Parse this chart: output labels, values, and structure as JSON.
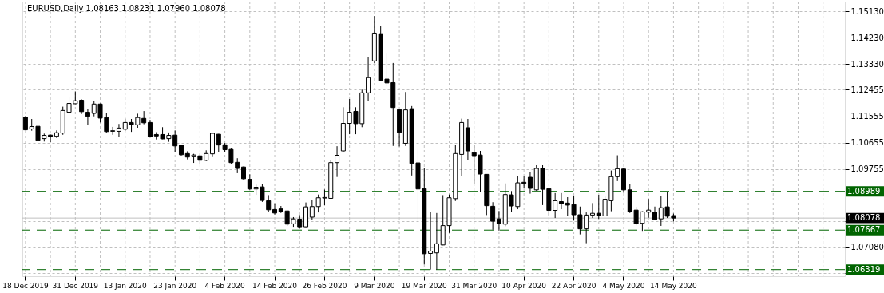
{
  "chart_data": {
    "type": "candlestick",
    "title": "EURUSD,Daily  1.08163 1.08231 1.07960 1.08078",
    "categories": [
      "18 Dec 2019",
      null,
      null,
      null,
      null,
      null,
      null,
      null,
      "31 Dec 2019",
      null,
      null,
      null,
      null,
      null,
      null,
      null,
      "13 Jan 2020",
      null,
      null,
      null,
      null,
      null,
      null,
      null,
      "23 Jan 2020",
      null,
      null,
      null,
      null,
      null,
      null,
      null,
      "4 Feb 2020",
      null,
      null,
      null,
      null,
      null,
      null,
      null,
      "14 Feb 2020",
      null,
      null,
      null,
      null,
      null,
      null,
      null,
      "26 Feb 2020",
      null,
      null,
      null,
      null,
      null,
      null,
      null,
      "9 Mar 2020",
      null,
      null,
      null,
      null,
      null,
      null,
      null,
      "19 Mar 2020",
      null,
      null,
      null,
      null,
      null,
      null,
      null,
      "31 Mar 2020",
      null,
      null,
      null,
      null,
      null,
      null,
      null,
      "10 Apr 2020",
      null,
      null,
      null,
      null,
      null,
      null,
      null,
      "22 Apr 2020",
      null,
      null,
      null,
      null,
      null,
      null,
      null,
      "4 May 2020",
      null,
      null,
      null,
      null,
      null,
      null,
      null,
      "14 May 2020",
      null,
      null,
      null,
      null,
      null,
      null,
      null,
      null,
      null,
      null,
      null,
      null,
      null,
      null,
      null,
      null,
      null,
      null,
      null,
      null,
      null,
      null,
      null,
      null,
      null,
      null,
      null
    ],
    "ohlc": [
      [
        1.1152,
        1.1156,
        1.1107,
        1.1109
      ],
      [
        1.1112,
        1.1146,
        1.1106,
        1.112
      ],
      [
        1.1121,
        1.1125,
        1.1064,
        1.1073
      ],
      [
        1.1079,
        1.1096,
        1.1069,
        1.109
      ],
      [
        1.1091,
        1.1093,
        1.1067,
        1.1085
      ],
      [
        1.1087,
        1.1107,
        1.1081,
        1.1099
      ],
      [
        1.1098,
        1.1188,
        1.1092,
        1.1175
      ],
      [
        1.1169,
        1.1222,
        1.1168,
        1.1199
      ],
      [
        1.1198,
        1.124,
        1.1197,
        1.1208
      ],
      [
        1.121,
        1.1213,
        1.1163,
        1.1171
      ],
      [
        1.1169,
        1.1181,
        1.1125,
        1.1155
      ],
      [
        1.1165,
        1.1206,
        1.1155,
        1.1197
      ],
      [
        1.1197,
        1.1199,
        1.1134,
        1.1149
      ],
      [
        1.1151,
        1.1167,
        1.11,
        1.1103
      ],
      [
        1.1104,
        1.1119,
        1.1092,
        1.1106
      ],
      [
        1.1104,
        1.1129,
        1.1084,
        1.1115
      ],
      [
        1.1111,
        1.1147,
        1.1105,
        1.1134
      ],
      [
        1.1134,
        1.1146,
        1.1102,
        1.1126
      ],
      [
        1.1126,
        1.1164,
        1.1116,
        1.1151
      ],
      [
        1.1148,
        1.1173,
        1.1128,
        1.1133
      ],
      [
        1.1134,
        1.1143,
        1.1083,
        1.1086
      ],
      [
        1.1093,
        1.1101,
        1.1076,
        1.1088
      ],
      [
        1.1093,
        1.1118,
        1.1077,
        1.1078
      ],
      [
        1.1079,
        1.11,
        1.1068,
        1.109
      ],
      [
        1.1091,
        1.1107,
        1.1034,
        1.1054
      ],
      [
        1.1056,
        1.1057,
        1.1021,
        1.1024
      ],
      [
        1.1028,
        1.1036,
        1.1008,
        1.1016
      ],
      [
        1.1017,
        1.1027,
        1.0996,
        1.1023
      ],
      [
        1.102,
        1.1028,
        1.0991,
        1.1005
      ],
      [
        1.1005,
        1.1039,
        1.1002,
        1.1028
      ],
      [
        1.1027,
        1.1098,
        1.1016,
        1.1097
      ],
      [
        1.1094,
        1.1095,
        1.1032,
        1.1057
      ],
      [
        1.1058,
        1.1064,
        1.1032,
        1.1041
      ],
      [
        1.1042,
        1.1045,
        1.0992,
        1.0997
      ],
      [
        1.0998,
        1.1012,
        1.0961,
        1.0977
      ],
      [
        1.0982,
        1.0984,
        1.0938,
        1.0942
      ],
      [
        1.094,
        1.0957,
        1.0904,
        1.0907
      ],
      [
        1.0907,
        1.0922,
        1.0887,
        1.0913
      ],
      [
        1.0914,
        1.0925,
        1.0863,
        1.0868
      ],
      [
        1.0867,
        1.0886,
        1.0829,
        1.0836
      ],
      [
        1.0837,
        1.0858,
        1.082,
        1.0825
      ],
      [
        1.0839,
        1.0849,
        1.0825,
        1.083
      ],
      [
        1.0832,
        1.0834,
        1.0781,
        1.0787
      ],
      [
        1.0788,
        1.0811,
        1.0778,
        1.0805
      ],
      [
        1.0804,
        1.0818,
        1.0772,
        1.0778
      ],
      [
        1.0778,
        1.0861,
        1.0777,
        1.0846
      ],
      [
        1.0811,
        1.087,
        1.08,
        1.0847
      ],
      [
        1.0847,
        1.0888,
        1.0827,
        1.0877
      ],
      [
        1.0876,
        1.0905,
        1.0851,
        1.0878
      ],
      [
        1.0875,
        1.1007,
        1.0874,
        1.0997
      ],
      [
        1.0997,
        1.1053,
        1.0948,
        1.1022
      ],
      [
        1.1037,
        1.1186,
        1.1032,
        1.1131
      ],
      [
        1.1131,
        1.1214,
        1.1094,
        1.1169
      ],
      [
        1.1172,
        1.1186,
        1.1094,
        1.113
      ],
      [
        1.113,
        1.1246,
        1.1118,
        1.1235
      ],
      [
        1.1235,
        1.1357,
        1.1208,
        1.1287
      ],
      [
        1.1344,
        1.1497,
        1.1336,
        1.1439
      ],
      [
        1.1437,
        1.1462,
        1.1275,
        1.1277
      ],
      [
        1.1282,
        1.1369,
        1.1258,
        1.1269
      ],
      [
        1.127,
        1.1337,
        1.1054,
        1.1185
      ],
      [
        1.1178,
        1.1181,
        1.1052,
        1.11
      ],
      [
        1.1063,
        1.1238,
        1.1054,
        1.1177
      ],
      [
        1.1181,
        1.119,
        1.0953,
        1.0994
      ],
      [
        1.0996,
        1.1045,
        1.0797,
        1.0907
      ],
      [
        1.0908,
        1.0979,
        1.0649,
        1.0686
      ],
      [
        1.0687,
        1.0829,
        1.0632,
        1.0695
      ],
      [
        1.0689,
        1.0825,
        1.0632,
        1.072
      ],
      [
        1.0716,
        1.0886,
        1.0715,
        1.0782
      ],
      [
        1.0782,
        1.0888,
        1.0757,
        1.0877
      ],
      [
        1.0874,
        1.1058,
        1.0866,
        1.1028
      ],
      [
        1.1025,
        1.1147,
        1.095,
        1.1134
      ],
      [
        1.1116,
        1.1146,
        1.1007,
        1.1037
      ],
      [
        1.1031,
        1.1057,
        1.0923,
        1.1018
      ],
      [
        1.1023,
        1.1037,
        1.0897,
        1.0958
      ],
      [
        1.0957,
        1.0958,
        1.0818,
        1.085
      ],
      [
        1.0848,
        1.0862,
        1.0768,
        1.0797
      ],
      [
        1.0805,
        1.0832,
        1.0765,
        1.0788
      ],
      [
        1.0787,
        1.0926,
        1.078,
        1.0888
      ],
      [
        1.0887,
        1.09,
        1.0828,
        1.0849
      ],
      [
        1.0847,
        1.095,
        1.0838,
        1.0928
      ],
      [
        1.093,
        1.0952,
        1.0911,
        1.0926
      ],
      [
        1.0947,
        1.0966,
        1.0891,
        1.0909
      ],
      [
        1.0904,
        1.0988,
        1.0901,
        1.0977
      ],
      [
        1.0978,
        1.0988,
        1.0852,
        1.0906
      ],
      [
        1.0908,
        1.091,
        1.0814,
        1.0834
      ],
      [
        1.0834,
        1.0893,
        1.0808,
        1.0867
      ],
      [
        1.0864,
        1.0893,
        1.0838,
        1.0857
      ],
      [
        1.0859,
        1.0879,
        1.0814,
        1.0852
      ],
      [
        1.0854,
        1.0884,
        1.0799,
        1.0819
      ],
      [
        1.0819,
        1.0847,
        1.0752,
        1.0771
      ],
      [
        1.0771,
        1.0827,
        1.0722,
        1.0818
      ],
      [
        1.0818,
        1.0859,
        1.0808,
        1.0824
      ],
      [
        1.0824,
        1.0887,
        1.0805,
        1.0815
      ],
      [
        1.0815,
        1.0881,
        1.0814,
        1.0872
      ],
      [
        1.0867,
        1.097,
        1.0831,
        1.0949
      ],
      [
        1.0949,
        1.1022,
        1.0934,
        1.0976
      ],
      [
        1.0975,
        1.0977,
        1.0894,
        1.0904
      ],
      [
        1.0904,
        1.0925,
        1.0825,
        1.083
      ],
      [
        1.0835,
        1.0846,
        1.0783,
        1.0788
      ],
      [
        1.079,
        1.0831,
        1.0764,
        1.0829
      ],
      [
        1.0828,
        1.0873,
        1.0809,
        1.0835
      ],
      [
        1.0828,
        1.0847,
        1.08,
        1.0803
      ],
      [
        1.0805,
        1.0884,
        1.0781,
        1.0843
      ],
      [
        1.0846,
        1.0897,
        1.0808,
        1.0814
      ],
      [
        1.08163,
        1.08231,
        1.0796,
        1.08078
      ],
      null,
      null,
      null,
      null,
      null,
      null,
      null,
      null,
      null,
      null,
      null,
      null,
      null,
      null,
      null,
      null,
      null,
      null,
      null,
      null,
      null,
      null,
      null,
      null,
      null,
      null,
      null
    ],
    "ylim": [
      1.06093,
      1.15465
    ],
    "yticks": [
      {
        "value": 1.1513,
        "label": "1.15130"
      },
      {
        "value": 1.1423,
        "label": "1.14230"
      },
      {
        "value": 1.1333,
        "label": "1.13330"
      },
      {
        "value": 1.12455,
        "label": "1.12455"
      },
      {
        "value": 1.11555,
        "label": "1.11555"
      },
      {
        "value": 1.10655,
        "label": "1.10655"
      },
      {
        "value": 1.09755,
        "label": "1.09755"
      },
      {
        "value": 1.08855,
        "label": null
      },
      {
        "value": 1.0796,
        "label": null
      },
      {
        "value": 1.0708,
        "label": "1.07080"
      },
      {
        "value": 1.06205,
        "label": null
      }
    ],
    "ref_lines": [
      {
        "axis": "y",
        "value": 1.08989,
        "label": "1.08989",
        "color": "#006400",
        "line_style": "dashed"
      },
      {
        "axis": "y",
        "value": 1.07667,
        "label": "1.07667",
        "color": "#006400",
        "line_style": "dashed"
      },
      {
        "axis": "y",
        "value": 1.06319,
        "label": "1.06319",
        "color": "#006400",
        "line_style": "dashed"
      },
      {
        "axis": "y",
        "value": 1.08078,
        "label": "1.08078",
        "color": "#c0c0c0",
        "line_style": "solid"
      }
    ],
    "grid": true,
    "legend": false
  }
}
